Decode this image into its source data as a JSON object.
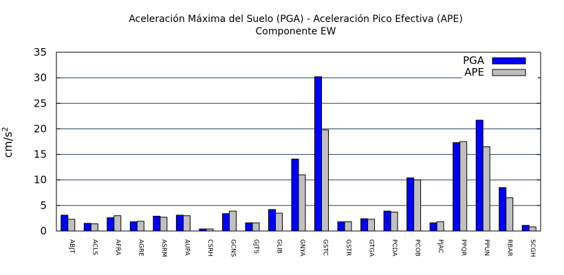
{
  "chart_data": {
    "type": "bar",
    "title_line1": "Aceleración Máxima del Suelo (PGA) -  Aceleración Pico Efectiva (APE)",
    "title_line2": "Componente EW",
    "ylabel_base": "cm/s",
    "ylabel_exp": "2",
    "xlabel": "",
    "ylim": [
      0,
      35
    ],
    "yticks": [
      0,
      5,
      10,
      15,
      20,
      25,
      30,
      35
    ],
    "grid": "horizontal",
    "legend_position": "top-right",
    "categories": [
      "ABJT",
      "ACLS",
      "AFRA",
      "AGRE",
      "ASRM",
      "AUPA",
      "CSRH",
      "GCNS",
      "GJTS",
      "GLIB",
      "GNYA",
      "GSTC",
      "GSTR",
      "GTGA",
      "PCDA",
      "PCOB",
      "PJAC",
      "PPQR",
      "PPUN",
      "RBAR",
      "SCGH"
    ],
    "series": [
      {
        "name": "PGA",
        "color": "#0000ff",
        "values": [
          3.1,
          1.5,
          2.6,
          1.8,
          2.9,
          3.1,
          0.4,
          3.4,
          1.6,
          4.2,
          14.1,
          30.2,
          1.8,
          2.4,
          3.9,
          10.4,
          1.6,
          17.3,
          21.7,
          8.5,
          1.1
        ]
      },
      {
        "name": "APE",
        "color": "#c0c0c0",
        "values": [
          2.3,
          1.4,
          3.0,
          1.9,
          2.7,
          3.0,
          0.4,
          3.9,
          1.6,
          3.5,
          11.0,
          19.8,
          1.8,
          2.3,
          3.7,
          10.0,
          1.8,
          17.5,
          16.5,
          6.5,
          0.8
        ]
      }
    ]
  }
}
